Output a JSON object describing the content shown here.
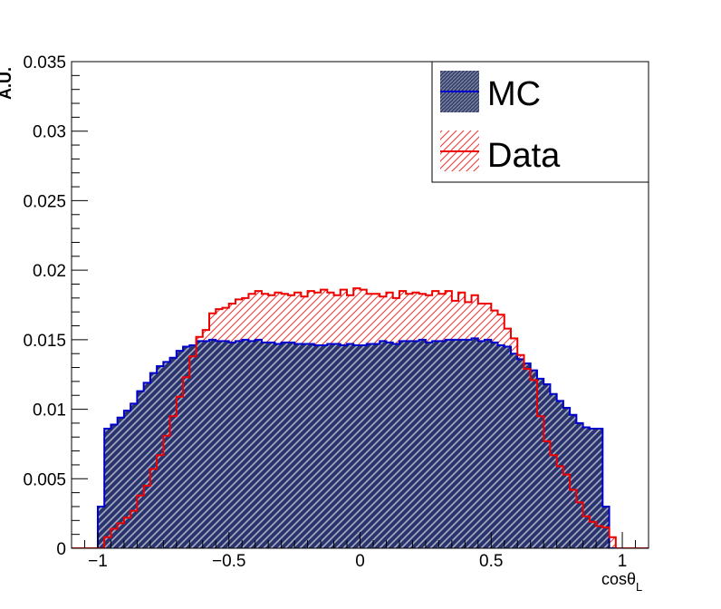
{
  "chart_data": {
    "type": "histogram",
    "xlabel": "cosθ",
    "xlabel_subscript": "L",
    "ylabel": "A.U.",
    "xlim": [
      -1.1,
      1.1
    ],
    "ylim": [
      0,
      0.035
    ],
    "x_ticks": [
      -1,
      -0.5,
      0,
      0.5,
      1
    ],
    "x_tick_labels": [
      "−1",
      "−0.5",
      "0",
      "0.5",
      "1"
    ],
    "y_ticks": [
      0,
      0.005,
      0.01,
      0.015,
      0.02,
      0.025,
      0.03,
      0.035
    ],
    "y_tick_labels": [
      "0",
      "0.005",
      "0.01",
      "0.015",
      "0.02",
      "0.025",
      "0.03",
      "0.035"
    ],
    "bin_edges_range": [
      -1.1,
      1.1
    ],
    "n_bins": 88,
    "legend_position": "top-right",
    "series": [
      {
        "name": "MC",
        "color": "#0000cc",
        "fill": "#1a2b66",
        "style": "filled-hatched",
        "values": [
          0,
          0,
          0,
          0,
          0.003,
          0.0086,
          0.0089,
          0.0094,
          0.0099,
          0.0104,
          0.0113,
          0.0119,
          0.0126,
          0.0131,
          0.0134,
          0.0137,
          0.0142,
          0.0145,
          0.0146,
          0.0149,
          0.0149,
          0.015,
          0.0149,
          0.0149,
          0.0148,
          0.0149,
          0.015,
          0.0149,
          0.015,
          0.0148,
          0.0148,
          0.0147,
          0.0148,
          0.0148,
          0.0147,
          0.0147,
          0.0147,
          0.0146,
          0.0146,
          0.0147,
          0.0147,
          0.0146,
          0.0147,
          0.0146,
          0.0146,
          0.0147,
          0.0147,
          0.0149,
          0.0148,
          0.0147,
          0.0149,
          0.0149,
          0.0149,
          0.015,
          0.0148,
          0.0149,
          0.0149,
          0.015,
          0.015,
          0.015,
          0.015,
          0.0151,
          0.0149,
          0.015,
          0.0148,
          0.0146,
          0.0145,
          0.014,
          0.0136,
          0.0133,
          0.0128,
          0.0122,
          0.0118,
          0.0111,
          0.0106,
          0.0101,
          0.0096,
          0.009,
          0.0087,
          0.0086,
          0.0086,
          0.003,
          0,
          0,
          0,
          0,
          0,
          0
        ]
      },
      {
        "name": "Data",
        "color": "#ee0000",
        "style": "hatched",
        "values": [
          0,
          0,
          0,
          0,
          0,
          0.0008,
          0.0014,
          0.0018,
          0.0022,
          0.0027,
          0.0038,
          0.0045,
          0.0057,
          0.0067,
          0.0081,
          0.0095,
          0.0109,
          0.0123,
          0.0138,
          0.0152,
          0.0157,
          0.0169,
          0.0172,
          0.0173,
          0.0176,
          0.0179,
          0.018,
          0.0183,
          0.0185,
          0.0183,
          0.0182,
          0.0184,
          0.0183,
          0.0182,
          0.0184,
          0.0181,
          0.0185,
          0.0184,
          0.0186,
          0.0184,
          0.0182,
          0.0186,
          0.0182,
          0.0187,
          0.0186,
          0.0183,
          0.0183,
          0.0181,
          0.0184,
          0.018,
          0.0185,
          0.0183,
          0.0184,
          0.0183,
          0.0182,
          0.0185,
          0.0183,
          0.0185,
          0.0178,
          0.0184,
          0.0177,
          0.0182,
          0.0176,
          0.0176,
          0.0171,
          0.0168,
          0.0158,
          0.0151,
          0.0139,
          0.0129,
          0.0121,
          0.0095,
          0.0077,
          0.0067,
          0.0059,
          0.0053,
          0.0042,
          0.0033,
          0.0023,
          0.0019,
          0.0016,
          0.0015,
          0.0008,
          0,
          0,
          0,
          0,
          0
        ]
      }
    ]
  }
}
